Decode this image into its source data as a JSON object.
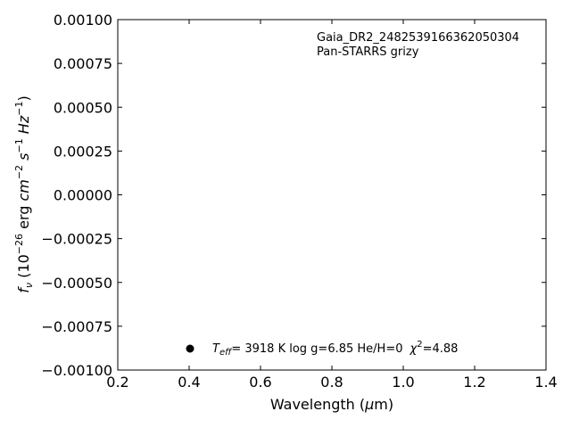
{
  "chart_data": {
    "type": "scatter",
    "title": "",
    "xlabel": "Wavelength (μm)",
    "ylabel": "f_ν (10^-26 erg cm^-2 s^-1 Hz^-1)",
    "xlim": [
      0.2,
      1.4
    ],
    "ylim": [
      -0.001,
      0.001
    ],
    "x_ticks": [
      0.2,
      0.4,
      0.6,
      0.8,
      1.0,
      1.2,
      1.4
    ],
    "x_tick_labels": [
      "0.2",
      "0.4",
      "0.6",
      "0.8",
      "1.0",
      "1.2",
      "1.4"
    ],
    "y_ticks": [
      0.001,
      0.00075,
      0.0005,
      0.00025,
      0.0,
      -0.00025,
      -0.0005,
      -0.00075,
      -0.001
    ],
    "y_tick_labels": [
      "0.00100",
      "0.00075",
      "0.00050",
      "0.00025",
      "0.00000",
      "−0.00025",
      "−0.00050",
      "−0.00075",
      "−0.00100"
    ],
    "grid": false,
    "series": [],
    "annotations": {
      "object_id": "Gaia_DR2_2482539166362050304",
      "filters": "Pan-STARRS grizy"
    },
    "legend": {
      "placement": "lower-center",
      "marker_color": "#000000",
      "teff_label": "T",
      "teff_sub": "eff",
      "teff_value": "=  3918 K  log g=6.85  He/H=0",
      "chi_label": "χ",
      "chi_sup": "2",
      "chi_value": "=4.88"
    }
  }
}
